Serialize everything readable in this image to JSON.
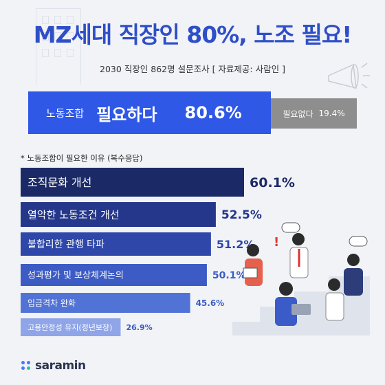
{
  "title": "MZ세대 직장인 80%, 노조 필요!",
  "subtitle": "2030 직장인 862명 설문조사 [ 자료제공: 사람인 ]",
  "need": {
    "label": "노동조합",
    "answer": "필요하다",
    "percent": "80.6%"
  },
  "no_need": {
    "answer": "필요없다",
    "percent": "19.4%"
  },
  "note": "* 노동조합이 필요한 이유 (복수응답)",
  "logo": "saramin",
  "colors": {
    "title": "#2f4fc8",
    "need_box": "#2f58e6",
    "no_need_box": "#8e8e8e",
    "bars": [
      "#1b2a66",
      "#24378a",
      "#2e47a8",
      "#3c5bc4",
      "#5273d6",
      "#8fa5e8"
    ]
  },
  "chart_data": {
    "type": "bar",
    "orientation": "horizontal",
    "categories": [
      "조직문화 개선",
      "열악한 노동조건 개선",
      "불합리한 관행 타파",
      "성과평가 및 보상체계논의",
      "임금격차 완화",
      "고용안정성 유지(정년보장)"
    ],
    "values": [
      60.1,
      52.5,
      51.2,
      50.1,
      45.6,
      26.9
    ],
    "value_labels": [
      "60.1%",
      "52.5%",
      "51.2%",
      "50.1%",
      "45.6%",
      "26.9%"
    ]
  }
}
